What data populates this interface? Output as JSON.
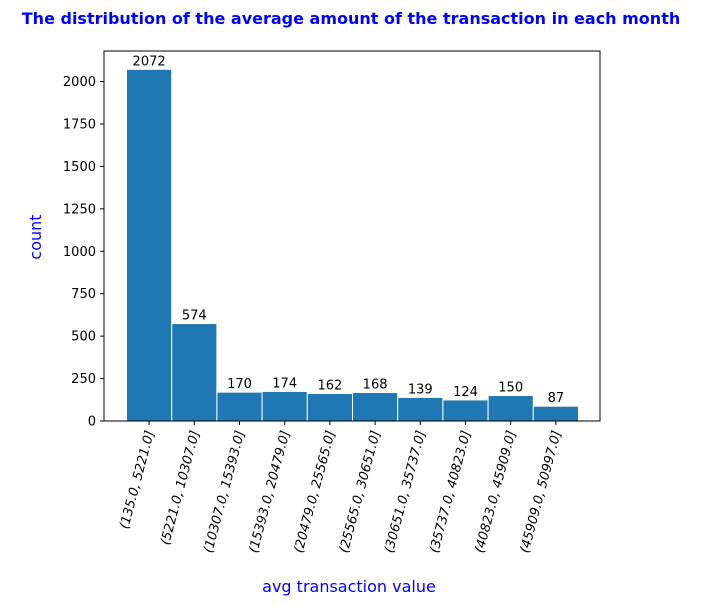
{
  "chart_data": {
    "type": "bar",
    "title": "The distribution of the average amount of the transaction in each month",
    "xlabel": "avg transaction value",
    "ylabel": "count",
    "categories": [
      "(135.0, 5221.0]",
      "(5221.0, 10307.0]",
      "(10307.0, 15393.0]",
      "(15393.0, 20479.0]",
      "(20479.0, 25565.0]",
      "(25565.0, 30651.0]",
      "(30651.0, 35737.0]",
      "(35737.0, 40823.0]",
      "(40823.0, 45909.0]",
      "(45909.0, 50997.0]"
    ],
    "values": [
      2072,
      574,
      170,
      174,
      162,
      168,
      139,
      124,
      150,
      87
    ],
    "ylim": [
      0,
      2180
    ],
    "yticks": [
      0,
      250,
      500,
      750,
      1000,
      1250,
      1500,
      1750,
      2000
    ],
    "grid": false,
    "bar_color": "#1f77b4",
    "title_color": "#0000ff",
    "label_color": "#0000ff"
  }
}
